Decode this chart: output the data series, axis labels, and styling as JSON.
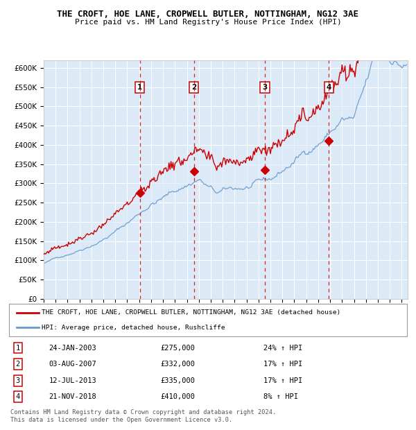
{
  "title": "THE CROFT, HOE LANE, CROPWELL BUTLER, NOTTINGHAM, NG12 3AE",
  "subtitle": "Price paid vs. HM Land Registry's House Price Index (HPI)",
  "legend_line1": "THE CROFT, HOE LANE, CROPWELL BUTLER, NOTTINGHAM, NG12 3AE (detached house)",
  "legend_line2": "HPI: Average price, detached house, Rushcliffe",
  "footer": "Contains HM Land Registry data © Crown copyright and database right 2024.\nThis data is licensed under the Open Government Licence v3.0.",
  "transactions": [
    {
      "num": 1,
      "date": "24-JAN-2003",
      "price": 275000,
      "pct": "24%",
      "dir": "↑"
    },
    {
      "num": 2,
      "date": "03-AUG-2007",
      "price": 332000,
      "pct": "17%",
      "dir": "↑"
    },
    {
      "num": 3,
      "date": "12-JUL-2013",
      "price": 335000,
      "pct": "17%",
      "dir": "↑"
    },
    {
      "num": 4,
      "date": "21-NOV-2018",
      "price": 410000,
      "pct": "8%",
      "dir": "↑"
    }
  ],
  "transaction_dates_decimal": [
    2003.07,
    2007.59,
    2013.53,
    2018.9
  ],
  "transaction_prices": [
    275000,
    332000,
    335000,
    410000
  ],
  "ylim": [
    0,
    620000
  ],
  "yticks": [
    0,
    50000,
    100000,
    150000,
    200000,
    250000,
    300000,
    350000,
    400000,
    450000,
    500000,
    550000,
    600000
  ],
  "xlim_start": 1995.0,
  "xlim_end": 2025.5,
  "background_color": "#dce9f7",
  "red_line_color": "#cc0000",
  "blue_line_color": "#6699cc",
  "grid_color": "#ffffff",
  "dashed_line_color": "#cc0000"
}
